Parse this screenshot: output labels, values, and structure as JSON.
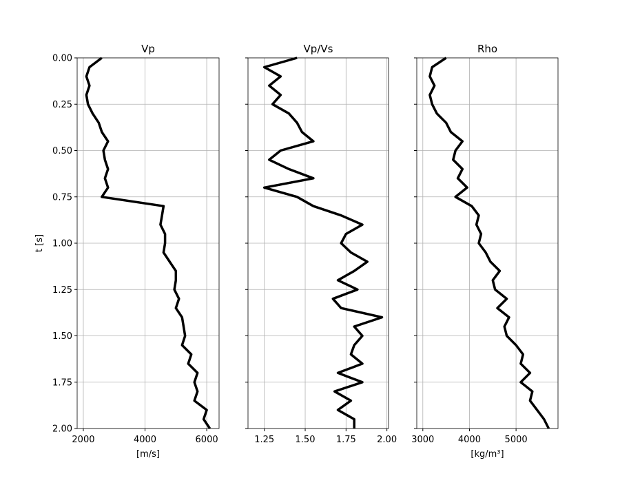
{
  "chart_data": [
    {
      "type": "line",
      "title": "Vp",
      "xlabel": "[m/s]",
      "ylabel": "t [s]",
      "color": "#000000",
      "grid": true,
      "xlim": [
        1800,
        6400
      ],
      "xticks": [
        2000,
        4000,
        6000
      ],
      "ylim": [
        2.0,
        0.0
      ],
      "yticks": [
        {
          "value": 0,
          "label": "0.00"
        },
        {
          "value": 0.25,
          "label": "0.25"
        },
        {
          "value": 0.5,
          "label": "0.50"
        },
        {
          "value": 0.75,
          "label": "0.75"
        },
        {
          "value": 1.0,
          "label": "1.00"
        },
        {
          "value": 1.25,
          "label": "1.25"
        },
        {
          "value": 1.5,
          "label": "1.50"
        },
        {
          "value": 1.75,
          "label": "1.75"
        },
        {
          "value": 2.0,
          "label": "2.00"
        }
      ],
      "y": [
        0,
        0.05,
        0.1,
        0.15,
        0.2,
        0.25,
        0.3,
        0.35,
        0.4,
        0.45,
        0.5,
        0.55,
        0.6,
        0.65,
        0.7,
        0.75,
        0.8,
        0.85,
        0.9,
        0.95,
        1.0,
        1.05,
        1.1,
        1.15,
        1.2,
        1.25,
        1.3,
        1.35,
        1.4,
        1.45,
        1.5,
        1.55,
        1.6,
        1.65,
        1.7,
        1.75,
        1.8,
        1.85,
        1.9,
        1.95,
        2.0
      ],
      "values": [
        2600,
        2200,
        2100,
        2200,
        2100,
        2150,
        2300,
        2500,
        2600,
        2800,
        2650,
        2700,
        2800,
        2700,
        2800,
        2600,
        4600,
        4550,
        4500,
        4650,
        4650,
        4600,
        4800,
        5000,
        5000,
        4950,
        5100,
        5000,
        5200,
        5250,
        5300,
        5200,
        5500,
        5400,
        5700,
        5600,
        5700,
        5600,
        6000,
        5900,
        6100
      ]
    },
    {
      "type": "line",
      "title": "Vp/Vs",
      "color": "#000000",
      "grid": true,
      "xlim": [
        1.15,
        2.01
      ],
      "xticks": [
        {
          "value": 1.25,
          "label": "1.25"
        },
        {
          "value": 1.5,
          "label": "1.50"
        },
        {
          "value": 1.75,
          "label": "1.75"
        },
        {
          "value": 2.0,
          "label": "2.00"
        }
      ],
      "ylim": [
        2.0,
        0.0
      ],
      "yticks": [
        0,
        0.25,
        0.5,
        0.75,
        1.0,
        1.25,
        1.5,
        1.75,
        2.0
      ],
      "y": [
        0,
        0.05,
        0.1,
        0.15,
        0.2,
        0.25,
        0.3,
        0.35,
        0.4,
        0.45,
        0.5,
        0.55,
        0.6,
        0.65,
        0.7,
        0.75,
        0.8,
        0.85,
        0.9,
        0.95,
        1.0,
        1.05,
        1.1,
        1.15,
        1.2,
        1.25,
        1.3,
        1.35,
        1.4,
        1.45,
        1.5,
        1.55,
        1.6,
        1.65,
        1.7,
        1.75,
        1.8,
        1.85,
        1.9,
        1.95,
        2.0
      ],
      "values": [
        1.45,
        1.25,
        1.35,
        1.28,
        1.35,
        1.3,
        1.4,
        1.45,
        1.48,
        1.55,
        1.35,
        1.28,
        1.4,
        1.55,
        1.25,
        1.45,
        1.55,
        1.72,
        1.85,
        1.75,
        1.72,
        1.78,
        1.88,
        1.8,
        1.7,
        1.82,
        1.67,
        1.72,
        1.97,
        1.8,
        1.85,
        1.8,
        1.78,
        1.85,
        1.7,
        1.85,
        1.68,
        1.78,
        1.7,
        1.8,
        1.8
      ]
    },
    {
      "type": "line",
      "title": "Rho",
      "xlabel": "[kg/m³]",
      "color": "#000000",
      "grid": true,
      "xlim": [
        2870,
        5900
      ],
      "xticks": [
        3000,
        4000,
        5000
      ],
      "ylim": [
        2.0,
        0.0
      ],
      "yticks": [
        0,
        0.25,
        0.5,
        0.75,
        1.0,
        1.25,
        1.5,
        1.75,
        2.0
      ],
      "y": [
        0,
        0.05,
        0.1,
        0.15,
        0.2,
        0.25,
        0.3,
        0.35,
        0.4,
        0.45,
        0.5,
        0.55,
        0.6,
        0.65,
        0.7,
        0.75,
        0.8,
        0.85,
        0.9,
        0.95,
        1.0,
        1.05,
        1.1,
        1.15,
        1.2,
        1.25,
        1.3,
        1.35,
        1.4,
        1.45,
        1.5,
        1.55,
        1.6,
        1.65,
        1.7,
        1.75,
        1.8,
        1.85,
        1.9,
        1.95,
        2.0
      ],
      "values": [
        3500,
        3200,
        3150,
        3250,
        3150,
        3200,
        3300,
        3500,
        3600,
        3850,
        3700,
        3650,
        3850,
        3750,
        3950,
        3700,
        4050,
        4200,
        4150,
        4250,
        4200,
        4350,
        4450,
        4650,
        4500,
        4550,
        4800,
        4600,
        4850,
        4750,
        4800,
        5000,
        5150,
        5100,
        5300,
        5100,
        5350,
        5300,
        5450,
        5600,
        5700
      ]
    }
  ]
}
